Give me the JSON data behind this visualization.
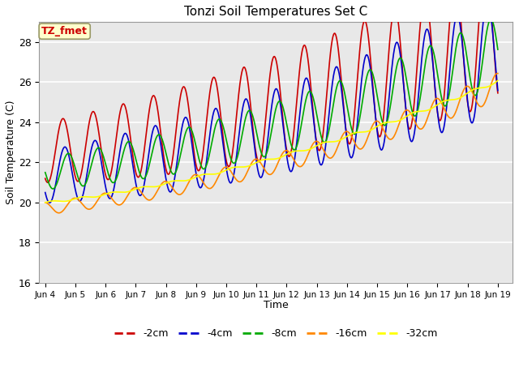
{
  "title": "Tonzi Soil Temperatures Set C",
  "xlabel": "Time",
  "ylabel": "Soil Temperature (C)",
  "ylim": [
    16,
    29
  ],
  "bg_color": "#e8e8e8",
  "annotation": "TZ_fmet",
  "series": {
    "-2cm": {
      "color": "#cc0000",
      "lw": 1.2
    },
    "-4cm": {
      "color": "#0000cc",
      "lw": 1.2
    },
    "-8cm": {
      "color": "#00aa00",
      "lw": 1.2
    },
    "-16cm": {
      "color": "#ff8800",
      "lw": 1.2
    },
    "-32cm": {
      "color": "#ffff00",
      "lw": 1.2
    }
  },
  "xtick_labels": [
    "Jun 4",
    "Jun 5",
    "Jun 6",
    "Jun 7",
    "Jun 8",
    "Jun 9",
    "Jun 10",
    "Jun 11",
    "Jun 12",
    "Jun 13",
    "Jun 14",
    "Jun 15",
    "Jun 16",
    "Jun 17",
    "Jun 18",
    "Jun 19"
  ],
  "xtick_positions": [
    0,
    1,
    2,
    3,
    4,
    5,
    6,
    7,
    8,
    9,
    10,
    11,
    12,
    13,
    14,
    15
  ],
  "yticks": [
    16,
    18,
    20,
    22,
    24,
    26,
    28
  ]
}
